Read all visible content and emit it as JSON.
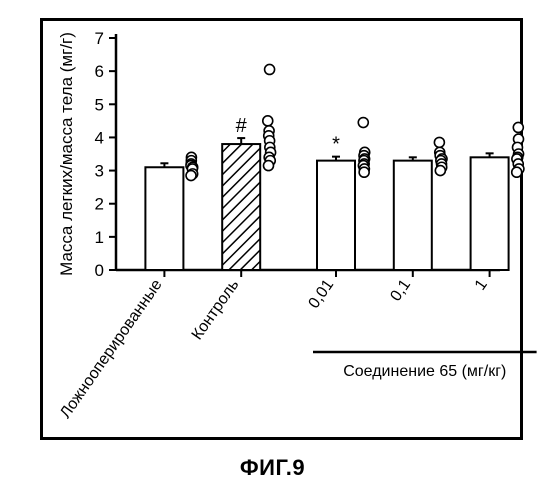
{
  "figure_label": "ФИГ.9",
  "chart": {
    "type": "bar-with-scatter",
    "ylabel": "Масса легких/масса тела (мг/г)",
    "label_fontsize": 17,
    "ylim": [
      0,
      7
    ],
    "ytick_step": 1,
    "yticks": [
      0,
      1,
      2,
      3,
      4,
      5,
      6,
      7
    ],
    "axis_color": "#000000",
    "grid": false,
    "background_color": "#ffffff",
    "bar_border_color": "#000000",
    "bar_border_width": 2,
    "bar_fill_default": "#ffffff",
    "hatch_color": "#000000",
    "marker_stroke": "#000000",
    "marker_fill": "#ffffff",
    "marker_radius": 5,
    "error_cap_width": 8,
    "compound_label": "Соединение 65 (мг/кг)",
    "categories": [
      {
        "key": "sham",
        "xlabel": "Ложнооперированные",
        "bar_value": 3.1,
        "err": 0.12,
        "fill": "#ffffff",
        "hatched": false,
        "annotation": "",
        "points": [
          3.4,
          3.3,
          3.2,
          3.15,
          3.1,
          3.05,
          2.9,
          2.85
        ]
      },
      {
        "key": "control",
        "xlabel": "Контроль",
        "bar_value": 3.8,
        "err": 0.18,
        "fill": "#ffffff",
        "hatched": true,
        "annotation": "#",
        "points": [
          6.05,
          4.5,
          4.2,
          4.05,
          3.9,
          3.7,
          3.55,
          3.4,
          3.3,
          3.15
        ]
      },
      {
        "key": "d001",
        "xlabel": "0,01",
        "bar_value": 3.3,
        "err": 0.12,
        "fill": "#ffffff",
        "hatched": false,
        "annotation": "*",
        "points": [
          4.45,
          3.55,
          3.45,
          3.35,
          3.3,
          3.2,
          3.15,
          3.05,
          2.95
        ]
      },
      {
        "key": "d01",
        "xlabel": "0,1",
        "bar_value": 3.3,
        "err": 0.1,
        "fill": "#ffffff",
        "hatched": false,
        "annotation": "",
        "points": [
          3.85,
          3.55,
          3.45,
          3.35,
          3.3,
          3.2,
          3.1,
          3.0
        ]
      },
      {
        "key": "d1",
        "xlabel": "1",
        "bar_value": 3.4,
        "err": 0.12,
        "fill": "#ffffff",
        "hatched": false,
        "annotation": "",
        "points": [
          4.3,
          3.95,
          3.7,
          3.5,
          3.4,
          3.35,
          3.2,
          3.05,
          2.95
        ]
      }
    ]
  }
}
